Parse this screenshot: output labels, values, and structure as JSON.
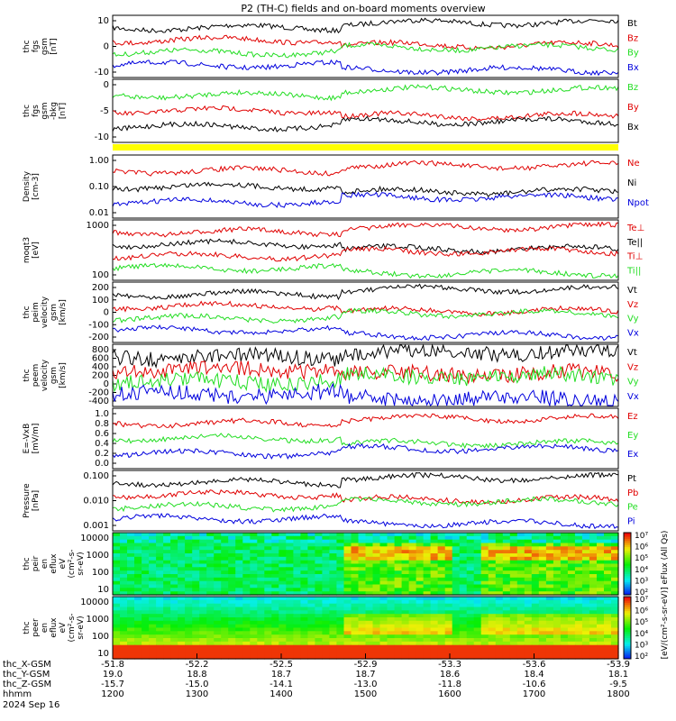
{
  "title": "P2 (TH-C) fields and on-board moments overview",
  "time": {
    "ticks": [
      "1200",
      "1300",
      "1400",
      "1500",
      "1600",
      "1700",
      "1800"
    ],
    "row_labels": [
      "thc_X-GSM",
      "thc_Y-GSM",
      "thc_Z-GSM",
      "hhmm",
      "2024 Sep 16"
    ],
    "x_gsm": [
      "-51.8",
      "-52.2",
      "-52.5",
      "-52.9",
      "-53.3",
      "-53.6",
      "-53.9"
    ],
    "y_gsm": [
      "19.0",
      "18.8",
      "18.7",
      "18.7",
      "18.6",
      "18.4",
      "18.1"
    ],
    "z_gsm": [
      "-15.7",
      "-15.0",
      "-14.1",
      "-13.0",
      "-11.8",
      "-10.6",
      "-9.5"
    ]
  },
  "colors": {
    "black": "#000000",
    "red": "#e00000",
    "green": "#22dd22",
    "blue": "#0000dd",
    "yellow": "#ffff00"
  },
  "chart_data": [
    {
      "type": "line",
      "ylabel": [
        "thc",
        "fgs",
        "gsm",
        "[nT]"
      ],
      "yticks": [
        "10",
        "0",
        "-10"
      ],
      "series": [
        {
          "name": "Bt",
          "color": "black"
        },
        {
          "name": "Bz",
          "color": "red"
        },
        {
          "name": "By",
          "color": "green"
        },
        {
          "name": "Bx",
          "color": "blue"
        }
      ]
    },
    {
      "type": "line",
      "ylabel": [
        "thc",
        "fgs",
        "gsm",
        "-bkg",
        "[nT]"
      ],
      "yticks": [
        "0",
        "-5",
        "-10"
      ],
      "series": [
        {
          "name": "Bz",
          "color": "green"
        },
        {
          "name": "By",
          "color": "red"
        },
        {
          "name": "Bx",
          "color": "black"
        }
      ]
    },
    {
      "type": "line",
      "ylabel": [
        "Density",
        "[cm-3]"
      ],
      "yticks": [
        "1.00",
        "0.10",
        "0.01"
      ],
      "log": true,
      "series": [
        {
          "name": "Ne",
          "color": "red"
        },
        {
          "name": "Ni",
          "color": "black"
        },
        {
          "name": "Npot",
          "color": "blue"
        }
      ]
    },
    {
      "type": "line",
      "ylabel": [
        "moqt3",
        "[eV]"
      ],
      "yticks": [
        "1000",
        "100"
      ],
      "log": true,
      "series": [
        {
          "name": "Te⊥",
          "color": "red"
        },
        {
          "name": "Te||",
          "color": "black"
        },
        {
          "name": "Ti⊥",
          "color": "red"
        },
        {
          "name": "Ti||",
          "color": "green"
        }
      ]
    },
    {
      "type": "line",
      "ylabel": [
        "thc",
        "peim",
        "velocity",
        "gsm",
        "[km/s]"
      ],
      "yticks": [
        "200",
        "100",
        "0",
        "-100",
        "-200"
      ],
      "series": [
        {
          "name": "Vt",
          "color": "black"
        },
        {
          "name": "Vz",
          "color": "red"
        },
        {
          "name": "Vy",
          "color": "green"
        },
        {
          "name": "Vx",
          "color": "blue"
        }
      ]
    },
    {
      "type": "line",
      "ylabel": [
        "thc",
        "peem",
        "velocity",
        "gsm",
        "[km/s]"
      ],
      "yticks": [
        "800",
        "600",
        "400",
        "200",
        "0",
        "-200",
        "-400"
      ],
      "series": [
        {
          "name": "Vt",
          "color": "black"
        },
        {
          "name": "Vz",
          "color": "red"
        },
        {
          "name": "Vy",
          "color": "green"
        },
        {
          "name": "Vx",
          "color": "blue"
        }
      ]
    },
    {
      "type": "line",
      "ylabel": [
        "E=-VxB",
        "[mV/m]"
      ],
      "yticks": [
        "1.0",
        "0.8",
        "0.6",
        "0.4",
        "0.2",
        "0.0"
      ],
      "series": [
        {
          "name": "Ez",
          "color": "red"
        },
        {
          "name": "Ey",
          "color": "green"
        },
        {
          "name": "Ex",
          "color": "blue"
        }
      ]
    },
    {
      "type": "line",
      "ylabel": [
        "Pressure",
        "[nPa]"
      ],
      "yticks": [
        "0.100",
        "0.010",
        "0.001"
      ],
      "log": true,
      "series": [
        {
          "name": "Pt",
          "color": "black"
        },
        {
          "name": "Pb",
          "color": "red"
        },
        {
          "name": "Pe",
          "color": "green"
        },
        {
          "name": "Pi",
          "color": "blue"
        }
      ]
    },
    {
      "type": "heatmap",
      "ylabel": [
        "thc",
        "peir",
        "en",
        "eflux",
        "eV",
        "(cm²-s-",
        "sr-eV)"
      ],
      "yticks": [
        "10000",
        "1000",
        "100",
        "10"
      ],
      "log": true
    },
    {
      "type": "heatmap",
      "ylabel": [
        "thc",
        "peer",
        "en",
        "eflux",
        "eV",
        "(cm²-s-",
        "sr-eV)"
      ],
      "yticks": [
        "10000",
        "1000",
        "100",
        "10"
      ],
      "log": true
    }
  ],
  "colorbar": {
    "ticks": [
      "10⁷",
      "10⁶",
      "10⁵",
      "10⁴",
      "10³",
      "10²",
      "10⁷",
      "10⁶",
      "10⁵",
      "10⁴",
      "10³",
      "10²"
    ],
    "label": "[eV/(cm²-s-sr-eV)] eFlux (All Qs)"
  }
}
